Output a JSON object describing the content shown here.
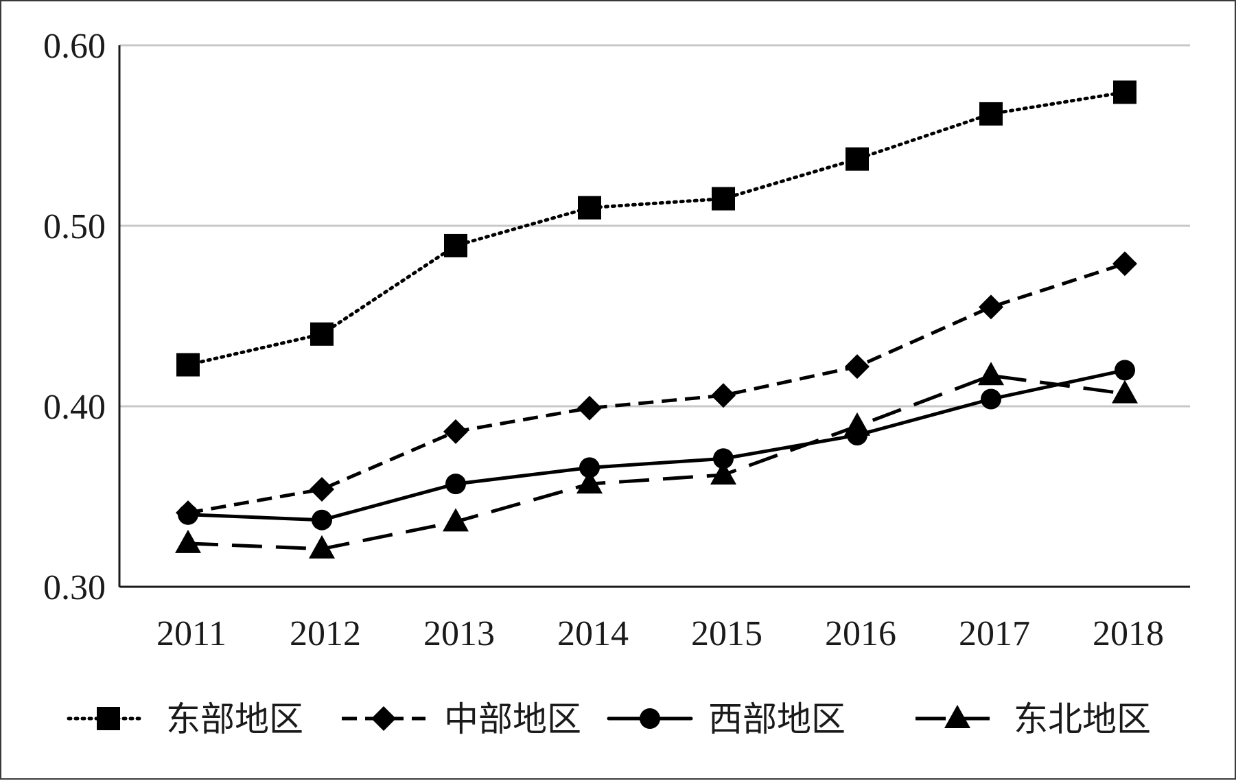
{
  "chart_data": {
    "type": "line",
    "title": "",
    "xlabel": "",
    "ylabel": "",
    "categories": [
      "2011",
      "2012",
      "2013",
      "2014",
      "2015",
      "2016",
      "2017",
      "2018"
    ],
    "ylim": [
      0.3,
      0.6
    ],
    "yticks": [
      0.3,
      0.4,
      0.5,
      0.6
    ],
    "ytick_labels": [
      "0.30",
      "0.40",
      "0.50",
      "0.60"
    ],
    "grid": "horizontal",
    "legend_position": "bottom",
    "series": [
      {
        "name": "东部地区",
        "values": [
          0.423,
          0.44,
          0.489,
          0.51,
          0.515,
          0.537,
          0.562,
          0.574
        ],
        "line": "dotted",
        "marker": "square",
        "color": "#000000"
      },
      {
        "name": "中部地区",
        "values": [
          0.341,
          0.354,
          0.386,
          0.399,
          0.406,
          0.422,
          0.455,
          0.479
        ],
        "line": "dashed",
        "marker": "diamond",
        "color": "#000000"
      },
      {
        "name": "西部地区",
        "values": [
          0.34,
          0.337,
          0.357,
          0.366,
          0.371,
          0.384,
          0.404,
          0.42
        ],
        "line": "solid",
        "marker": "circle",
        "color": "#000000"
      },
      {
        "name": "东北地区",
        "values": [
          0.324,
          0.321,
          0.336,
          0.357,
          0.362,
          0.389,
          0.417,
          0.407
        ],
        "line": "longdash",
        "marker": "triangle",
        "color": "#000000"
      }
    ]
  }
}
